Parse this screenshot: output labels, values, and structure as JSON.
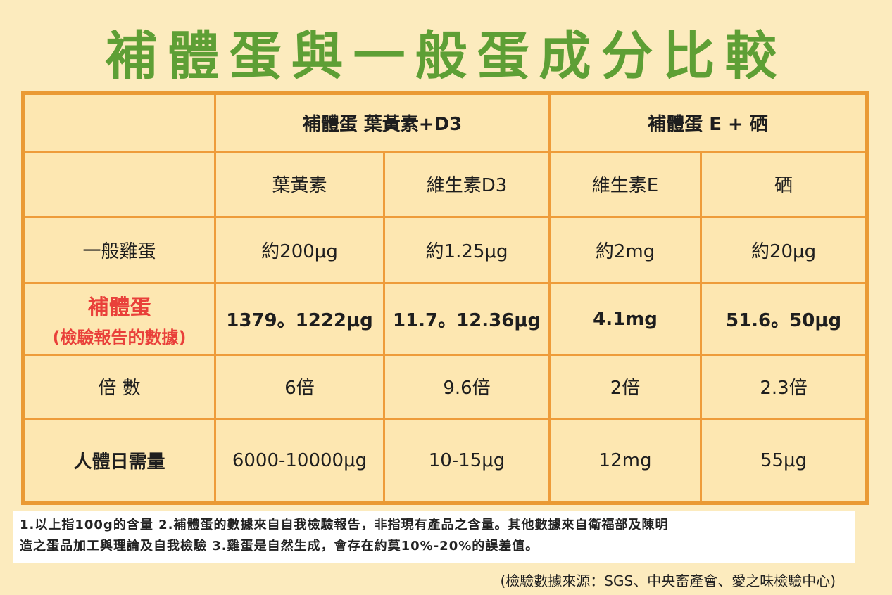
{
  "title": "補體蛋與一般蛋成分比較",
  "header": {
    "group1": "補體蛋 葉黃素+D3",
    "group2": "補體蛋 E + 硒",
    "col1": "葉黃素",
    "col2": "維生素D3",
    "col3": "維生素E",
    "col4": "硒"
  },
  "rows": {
    "regular": {
      "label": "一般雞蛋",
      "values": [
        "約200μg",
        "約1.25μg",
        "約2mg",
        "約20μg"
      ]
    },
    "buti": {
      "label": "補體蛋",
      "sublabel": "(檢驗報告的數據)",
      "values": [
        "1379。1222μg",
        "11.7。12.36μg",
        "4.1mg",
        "51.6。50μg"
      ]
    },
    "multiple": {
      "label": "倍 數",
      "values": [
        "6倍",
        "9.6倍",
        "2倍",
        "2.3倍"
      ]
    },
    "daily": {
      "label": "人體日需量",
      "values": [
        "6000-10000μg",
        "10-15μg",
        "12mg",
        "55μg"
      ]
    }
  },
  "notes": {
    "line1": "1.以上指100g的含量 2.補體蛋的數據來自自我檢驗報告，非指現有產品之含量。其他數據來自衛福部及陳明",
    "line2": "造之蛋品加工與理論及自我檢驗 3.雞蛋是自然生成，會存在約莫10%-20%的誤差值。"
  },
  "source": "(檢驗數據來源：SGS、中央畜產會、愛之味檢驗中心)",
  "colors": {
    "background": "#fcebbe",
    "title": "#5e9f35",
    "border": "#ea9a34",
    "highlight_red": "#e9403a",
    "label_purple": "#6b4f93"
  }
}
